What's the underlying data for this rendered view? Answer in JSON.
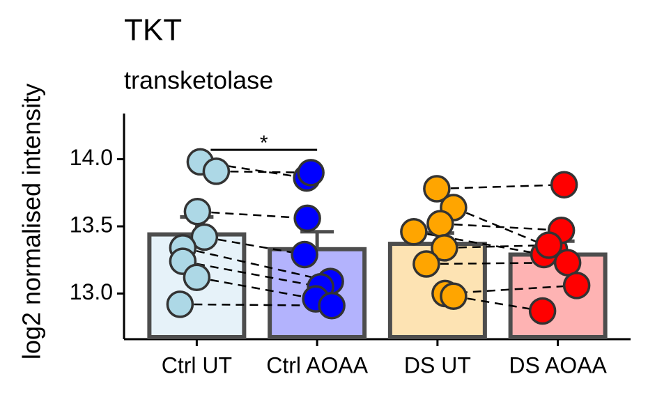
{
  "chart_data": {
    "type": "bar",
    "title": "TKT",
    "subtitle": "transketolase",
    "y_label": "log2 normalised intensity",
    "categories": [
      "Ctrl UT",
      "Ctrl AOAA",
      "DS UT",
      "DS AOAA"
    ],
    "values": [
      13.44,
      13.33,
      13.37,
      13.29
    ],
    "errors": [
      0.13,
      0.13,
      0.08,
      0.1
    ],
    "bar_colors": [
      "#e6f2f9",
      "#b3b3fd",
      "#fde3b3",
      "#feb3b3"
    ],
    "point_colors": [
      "#add8e6",
      "#0000ff",
      "#ffa500",
      "#ff0000"
    ],
    "points": [
      [
        13.98,
        13.91,
        13.61,
        13.42,
        13.34,
        13.24,
        13.12,
        12.92
      ],
      [
        13.86,
        13.9,
        13.56,
        13.29,
        13.09,
        13.05,
        12.96,
        12.91
      ],
      [
        13.78,
        13.64,
        13.52,
        13.46,
        13.34,
        13.22,
        13.0,
        12.98
      ],
      [
        13.81,
        13.33,
        13.47,
        13.29,
        13.36,
        13.23,
        13.06,
        12.87
      ]
    ],
    "annotations": [
      {
        "text": "*",
        "from": 0,
        "to": 1,
        "y": 14.07
      }
    ],
    "ylim": [
      12.66,
      14.34
    ],
    "yticks": [
      {
        "value": 13,
        "label": "13.0"
      },
      {
        "value": 13.5,
        "label": "13.5"
      },
      {
        "value": 14,
        "label": "14.0"
      }
    ]
  }
}
